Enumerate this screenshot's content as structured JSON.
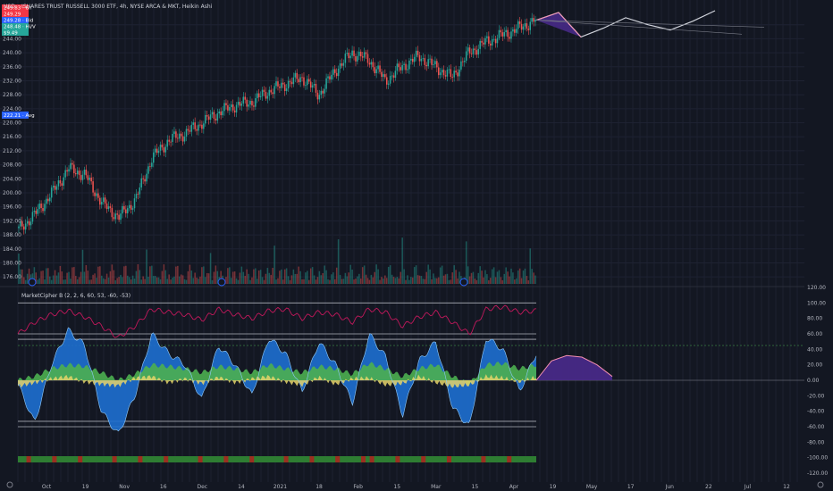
{
  "symbol_title": "ISHARES TRUST RUSSELL 3000 ETF, 4h, NYSE ARCA & MKT, Heikin Ashi",
  "currency": "USD",
  "price_tags": [
    {
      "text": "249.83 · 6h",
      "bg": "#f23645",
      "fg": "#ffffff",
      "price": 249.83
    },
    {
      "text": "249.29",
      "bg": "#f23645",
      "fg": "#ffffff",
      "price": 249.29
    },
    {
      "text": "249.28 · Bid",
      "bg": "#2962ff",
      "fg": "#ffffff",
      "price": 248.9
    },
    {
      "text": "248.48 · Hi/V",
      "bg": "#26a69a",
      "fg": "#ffffff",
      "price": 248.48
    },
    {
      "text": "$9.49",
      "bg": "#26a69a",
      "fg": "#ffffff",
      "price": 247.8
    }
  ],
  "avg_tag": {
    "text": "222.21 · Avg",
    "price": 222.21,
    "bg": "#2962ff"
  },
  "price_axis": [
    "248.00",
    "244.00",
    "240.00",
    "236.00",
    "232.00",
    "228.00",
    "224.00",
    "220.00",
    "216.00",
    "212.00",
    "208.00",
    "204.00",
    "200.00",
    "196.00",
    "192.00",
    "188.00",
    "184.00",
    "180.00",
    "176.00"
  ],
  "indicator_title": "MarketCipher B (2, 2, 6, 60, 53, -60, -53)",
  "indicator_axis": [
    "120.00",
    "100.00",
    "80.00",
    "60.00",
    "40.00",
    "20.00",
    "0.00",
    "-20.00",
    "-40.00",
    "-60.00",
    "-80.00",
    "-100.00",
    "-120.00"
  ],
  "time_axis": [
    "Oct",
    "19",
    "Nov",
    "16",
    "Dec",
    "14",
    "2021",
    "18",
    "Feb",
    "15",
    "Mar",
    "15",
    "Apr",
    "19",
    "May",
    "17",
    "Jun",
    "22",
    "Jul",
    "12"
  ],
  "colors": {
    "background": "#131722",
    "up": "#26a69a",
    "down": "#ef5350",
    "wave_blue": "#1e6fd0",
    "wave_green": "#4caf50",
    "money_flow": "#e6d36a",
    "rsi_line": "#c2185b",
    "vwap": "#c8e6c9",
    "projection_fill": "#4a2a8c",
    "projection_line": "#d1d4dc"
  },
  "chart_data": [
    {
      "type": "line",
      "title": "ISHARES TRUST RUSSELL 3000 ETF, 4h, NYSE ARCA & MKT, Heikin Ashi",
      "ylim": [
        174,
        252
      ],
      "x": [
        "Sep 24",
        "Oct 1",
        "Oct 8",
        "Oct 15",
        "Oct 22",
        "Oct 29",
        "Nov 5",
        "Nov 12",
        "Nov 19",
        "Nov 26",
        "Dec 3",
        "Dec 10",
        "Dec 17",
        "Dec 24",
        "Dec 31",
        "Jan 7",
        "Jan 14",
        "Jan 21",
        "Jan 28",
        "Feb 4",
        "Feb 11",
        "Feb 18",
        "Feb 25",
        "Mar 4",
        "Mar 11",
        "Mar 18",
        "Mar 25",
        "Apr 1",
        "Apr 8",
        "Apr 15",
        "Apr 22",
        "Apr 29"
      ],
      "series": [
        {
          "values": [
            189.5,
            194,
            200,
            207,
            205,
            197,
            193,
            198,
            210,
            215,
            217,
            220,
            223,
            225,
            226,
            229,
            231,
            233,
            228,
            235,
            240,
            238,
            232,
            236,
            239,
            236,
            233,
            240,
            243,
            245,
            247,
            249.3
          ]
        }
      ],
      "projection": {
        "x": [
          "Apr 29",
          "May 3",
          "May 8",
          "May 13",
          "May 18",
          "May 23",
          "May 28",
          "Jun 3",
          "Jun 8"
        ],
        "values": [
          249.3,
          251.5,
          244.5,
          247,
          250,
          248,
          246.5,
          249,
          252
        ]
      }
    },
    {
      "type": "area",
      "title": "MarketCipher B (2, 2, 6, 60, 53, -60, -53)",
      "ylim": [
        -120,
        120
      ],
      "x": [
        "Sep 24",
        "Oct 1",
        "Oct 8",
        "Oct 15",
        "Oct 22",
        "Oct 29",
        "Nov 5",
        "Nov 12",
        "Nov 19",
        "Nov 26",
        "Dec 3",
        "Dec 10",
        "Dec 17",
        "Dec 24",
        "Dec 31",
        "Jan 7",
        "Jan 14",
        "Jan 21",
        "Jan 28",
        "Feb 4",
        "Feb 11",
        "Feb 18",
        "Feb 25",
        "Mar 4",
        "Mar 11",
        "Mar 18",
        "Mar 25",
        "Apr 1",
        "Apr 8",
        "Apr 15",
        "Apr 22",
        "Apr 29"
      ],
      "levels": [
        100,
        60,
        53,
        -53,
        -60
      ],
      "series": [
        {
          "values": [
            -5,
            -55,
            20,
            65,
            45,
            -40,
            -70,
            -20,
            60,
            35,
            20,
            -25,
            45,
            20,
            -20,
            55,
            35,
            -15,
            50,
            20,
            -30,
            60,
            30,
            -45,
            25,
            50,
            -35,
            -60,
            55,
            40,
            -15,
            35
          ]
        },
        {
          "values": [
            0,
            5,
            15,
            20,
            18,
            10,
            0,
            8,
            20,
            18,
            15,
            10,
            18,
            15,
            10,
            20,
            15,
            10,
            18,
            15,
            8,
            22,
            15,
            5,
            15,
            20,
            5,
            -5,
            20,
            22,
            15,
            20
          ]
        },
        {
          "values": [
            -8,
            -3,
            2,
            5,
            -2,
            -5,
            -7,
            3,
            5,
            -3,
            2,
            -4,
            4,
            -3,
            2,
            5,
            -2,
            -6,
            4,
            -5,
            2,
            3,
            -6,
            -4,
            5,
            -3,
            -8,
            -6,
            5,
            3,
            -2,
            4
          ]
        },
        {
          "values": [
            60,
            75,
            85,
            90,
            82,
            70,
            55,
            70,
            92,
            88,
            85,
            78,
            92,
            85,
            80,
            90,
            92,
            80,
            88,
            85,
            75,
            92,
            88,
            70,
            82,
            88,
            75,
            60,
            92,
            95,
            88,
            90
          ]
        }
      ],
      "projection": {
        "x": [
          "Apr 29",
          "May 3",
          "May 8",
          "May 13",
          "May 18",
          "May 23"
        ],
        "values": [
          0,
          25,
          32,
          30,
          20,
          5
        ]
      }
    }
  ]
}
